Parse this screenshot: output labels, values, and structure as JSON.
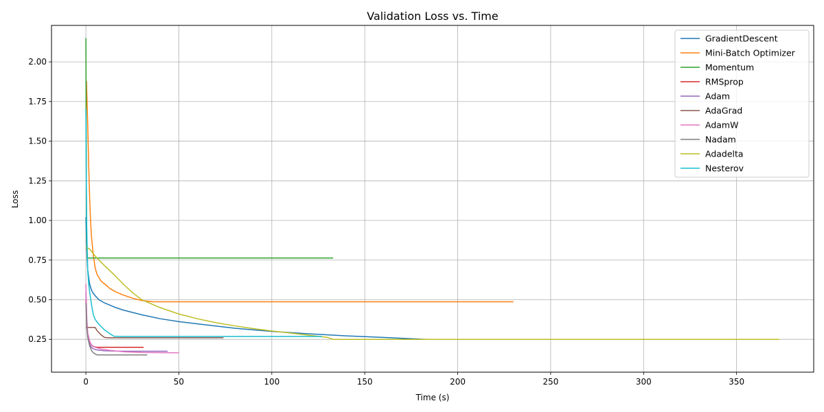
{
  "chart_data": {
    "type": "line",
    "title": "Validation Loss vs. Time",
    "xlabel": "Time (s)",
    "ylabel": "Loss",
    "xlim": [
      -18.5,
      391.5
    ],
    "ylim": [
      0.043,
      2.23
    ],
    "xticks": [
      0,
      50,
      100,
      150,
      200,
      250,
      300,
      350
    ],
    "yticks": [
      0.25,
      0.5,
      0.75,
      1.0,
      1.25,
      1.5,
      1.75,
      2.0
    ],
    "xtick_labels": [
      "0",
      "50",
      "100",
      "150",
      "200",
      "250",
      "300",
      "350"
    ],
    "ytick_labels": [
      "0.25",
      "0.50",
      "0.75",
      "1.00",
      "1.25",
      "1.50",
      "1.75",
      "2.00"
    ],
    "grid": true,
    "legend_position": "top-right",
    "series": [
      {
        "name": "GradientDescent",
        "color": "#1f77b4",
        "points": [
          [
            0,
            1.02
          ],
          [
            0.3,
            0.88
          ],
          [
            0.6,
            0.77
          ],
          [
            1,
            0.69
          ],
          [
            1.5,
            0.64
          ],
          [
            2,
            0.6
          ],
          [
            3,
            0.56
          ],
          [
            4,
            0.54
          ],
          [
            5,
            0.525
          ],
          [
            7,
            0.5
          ],
          [
            10,
            0.48
          ],
          [
            15,
            0.455
          ],
          [
            20,
            0.435
          ],
          [
            30,
            0.405
          ],
          [
            40,
            0.38
          ],
          [
            50,
            0.362
          ],
          [
            60,
            0.348
          ],
          [
            80,
            0.32
          ],
          [
            100,
            0.3
          ],
          [
            120,
            0.285
          ],
          [
            140,
            0.272
          ],
          [
            160,
            0.262
          ],
          [
            183,
            0.25
          ],
          [
            200,
            0.25
          ],
          [
            299,
            0.25
          ]
        ]
      },
      {
        "name": "Mini-Batch Optimizer",
        "color": "#ff7f0e",
        "points": [
          [
            0.3,
            1.88
          ],
          [
            1,
            1.6
          ],
          [
            1.5,
            1.35
          ],
          [
            2,
            1.15
          ],
          [
            2.5,
            1.0
          ],
          [
            3,
            0.9
          ],
          [
            4,
            0.78
          ],
          [
            5,
            0.7
          ],
          [
            6,
            0.66
          ],
          [
            8,
            0.62
          ],
          [
            10,
            0.6
          ],
          [
            13,
            0.57
          ],
          [
            16,
            0.55
          ],
          [
            20,
            0.53
          ],
          [
            25,
            0.51
          ],
          [
            30,
            0.495
          ],
          [
            36,
            0.487
          ],
          [
            50,
            0.487
          ],
          [
            100,
            0.487
          ],
          [
            230,
            0.487
          ]
        ]
      },
      {
        "name": "Momentum",
        "color": "#2ca02c",
        "points": [
          [
            0,
            2.15
          ],
          [
            0.15,
            1.6
          ],
          [
            0.3,
            1.1
          ],
          [
            0.5,
            0.85
          ],
          [
            0.7,
            0.765
          ],
          [
            1,
            0.763
          ],
          [
            50,
            0.763
          ],
          [
            100,
            0.763
          ],
          [
            133,
            0.763
          ]
        ]
      },
      {
        "name": "RMSprop",
        "color": "#d62728",
        "points": [
          [
            0,
            0.5
          ],
          [
            0.5,
            0.35
          ],
          [
            1,
            0.28
          ],
          [
            2,
            0.235
          ],
          [
            3,
            0.215
          ],
          [
            4,
            0.205
          ],
          [
            6,
            0.2
          ],
          [
            10,
            0.2
          ],
          [
            20,
            0.2
          ],
          [
            31,
            0.2
          ]
        ]
      },
      {
        "name": "Adam",
        "color": "#9467bd",
        "points": [
          [
            0,
            0.55
          ],
          [
            0.5,
            0.35
          ],
          [
            1,
            0.27
          ],
          [
            2,
            0.22
          ],
          [
            3,
            0.2
          ],
          [
            4,
            0.19
          ],
          [
            6,
            0.183
          ],
          [
            10,
            0.178
          ],
          [
            20,
            0.175
          ],
          [
            44,
            0.175
          ]
        ]
      },
      {
        "name": "AdaGrad",
        "color": "#8c564b",
        "points": [
          [
            0,
            0.325
          ],
          [
            1,
            0.325
          ],
          [
            5,
            0.325
          ],
          [
            6,
            0.305
          ],
          [
            8,
            0.28
          ],
          [
            10,
            0.262
          ],
          [
            12,
            0.26
          ],
          [
            30,
            0.26
          ],
          [
            74,
            0.26
          ]
        ]
      },
      {
        "name": "AdamW",
        "color": "#e377c2",
        "points": [
          [
            0,
            0.6
          ],
          [
            0.5,
            0.38
          ],
          [
            1,
            0.29
          ],
          [
            2,
            0.24
          ],
          [
            3,
            0.215
          ],
          [
            5,
            0.2
          ],
          [
            8,
            0.19
          ],
          [
            12,
            0.182
          ],
          [
            20,
            0.172
          ],
          [
            30,
            0.167
          ],
          [
            50,
            0.165
          ]
        ]
      },
      {
        "name": "Nadam",
        "color": "#7f7f7f",
        "points": [
          [
            0,
            0.48
          ],
          [
            0.5,
            0.32
          ],
          [
            1,
            0.26
          ],
          [
            2,
            0.21
          ],
          [
            3,
            0.18
          ],
          [
            4,
            0.165
          ],
          [
            5,
            0.158
          ],
          [
            6,
            0.152
          ],
          [
            10,
            0.152
          ],
          [
            20,
            0.152
          ],
          [
            33,
            0.152
          ]
        ]
      },
      {
        "name": "Adadelta",
        "color": "#bcbd22",
        "points": [
          [
            0,
            0.83
          ],
          [
            2,
            0.82
          ],
          [
            5,
            0.775
          ],
          [
            10,
            0.715
          ],
          [
            15,
            0.66
          ],
          [
            20,
            0.6
          ],
          [
            25,
            0.545
          ],
          [
            30,
            0.5
          ],
          [
            40,
            0.45
          ],
          [
            50,
            0.41
          ],
          [
            60,
            0.38
          ],
          [
            70,
            0.355
          ],
          [
            80,
            0.335
          ],
          [
            90,
            0.318
          ],
          [
            100,
            0.303
          ],
          [
            110,
            0.29
          ],
          [
            120,
            0.276
          ],
          [
            130,
            0.262
          ],
          [
            133,
            0.25
          ],
          [
            150,
            0.25
          ],
          [
            200,
            0.25
          ],
          [
            300,
            0.25
          ],
          [
            373,
            0.25
          ]
        ]
      },
      {
        "name": "Nesterov",
        "color": "#17becf",
        "points": [
          [
            0,
            1.7
          ],
          [
            0.2,
            1.3
          ],
          [
            0.4,
            1.0
          ],
          [
            0.7,
            0.82
          ],
          [
            1,
            0.68
          ],
          [
            1.5,
            0.6
          ],
          [
            2,
            0.55
          ],
          [
            3,
            0.47
          ],
          [
            4,
            0.405
          ],
          [
            5,
            0.375
          ],
          [
            7,
            0.345
          ],
          [
            10,
            0.31
          ],
          [
            13,
            0.285
          ],
          [
            15,
            0.27
          ],
          [
            20,
            0.268
          ],
          [
            50,
            0.268
          ],
          [
            100,
            0.268
          ],
          [
            127,
            0.268
          ]
        ]
      }
    ]
  }
}
